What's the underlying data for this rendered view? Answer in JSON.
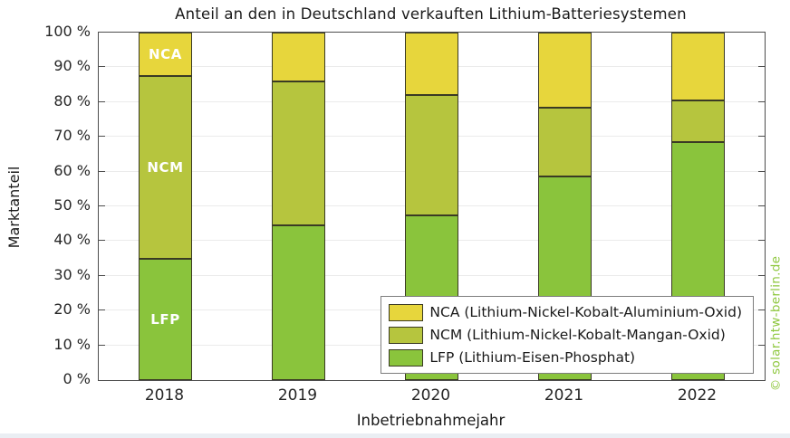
{
  "chart_data": {
    "type": "bar",
    "stacked": true,
    "title": "Anteil an den in Deutschland verkauften Lithium-Batteriesystemen",
    "xlabel": "Inbetriebnahmejahr",
    "ylabel": "Marktanteil",
    "ylim": [
      0,
      100
    ],
    "ytick_step": 10,
    "ytick_labels": [
      "0 %",
      "10 %",
      "20 %",
      "30 %",
      "40 %",
      "50 %",
      "60 %",
      "70 %",
      "80 %",
      "90 %",
      "100 %"
    ],
    "grid": true,
    "legend_position": "bottom-right",
    "categories": [
      "2018",
      "2019",
      "2020",
      "2021",
      "2022"
    ],
    "series": [
      {
        "name": "LFP",
        "legend_label": "LFP (Lithium-Eisen-Phosphat)",
        "color": "#8ac43c",
        "values": [
          35,
          44.5,
          47.5,
          58.5,
          68.5
        ],
        "bar_label": {
          "text": "LFP",
          "bar_index": 0
        }
      },
      {
        "name": "NCM",
        "legend_label": "NCM (Lithium-Nickel-Kobalt-Mangan-Oxid)",
        "color": "#b6c53e",
        "values": [
          52.5,
          41.5,
          34.5,
          20,
          12
        ],
        "bar_label": {
          "text": "NCM",
          "bar_index": 0
        }
      },
      {
        "name": "NCA",
        "legend_label": "NCA (Lithium-Nickel-Kobalt-Aluminium-Oxid)",
        "color": "#e7d63c",
        "values": [
          12.5,
          14,
          18,
          21.5,
          19.5
        ],
        "bar_label": {
          "text": "NCA",
          "bar_index": 0
        }
      }
    ]
  },
  "watermark": {
    "text": "© solar.htw-berlin.de",
    "color": "#8ec73e"
  },
  "colors": {
    "axis": "#4d4d4d",
    "grid": "#ebebeb",
    "text": "#1a1a1a",
    "bar_edge": "#3a3a24",
    "nca": "#e7d63c",
    "ncm": "#b6c53e",
    "lfp": "#8ac43c"
  }
}
